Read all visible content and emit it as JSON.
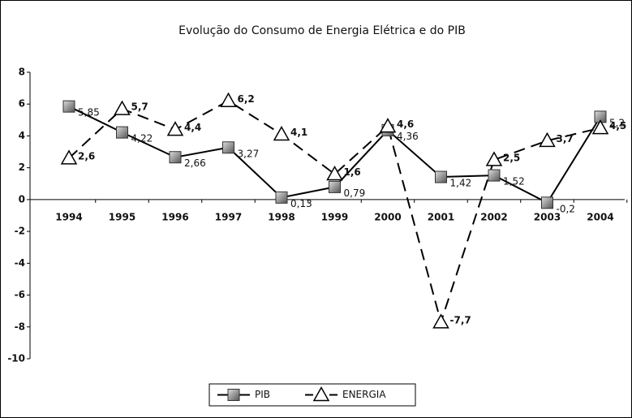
{
  "chart_data": {
    "type": "line",
    "title": "Evolução do Consumo de Energia Elétrica e do PIB",
    "categories": [
      "1994",
      "1995",
      "1996",
      "1997",
      "1998",
      "1999",
      "2000",
      "2001",
      "2002",
      "2003",
      "2004"
    ],
    "series": [
      {
        "name": "PIB",
        "color": "#000000",
        "values": [
          5.85,
          4.22,
          2.66,
          3.27,
          0.13,
          0.79,
          4.36,
          1.42,
          1.52,
          -0.2,
          5.2
        ],
        "value_labels": [
          "5,85",
          "4,22",
          "2,66",
          "3,27",
          "0,13",
          "0,79",
          "4,36",
          "1,42",
          "1,52",
          "-0,2",
          "5,2"
        ]
      },
      {
        "name": "ENERGIA",
        "color": "#000000",
        "values": [
          2.6,
          5.7,
          4.4,
          6.2,
          4.1,
          1.6,
          4.6,
          -7.7,
          2.5,
          3.7,
          4.5
        ],
        "value_labels": [
          "2,6",
          "5,7",
          "4,4",
          "6,2",
          "4,1",
          "1,6",
          "4,6",
          "-7,7",
          "2,5",
          "3,7",
          "4,5"
        ]
      }
    ],
    "ylim": [
      -10,
      8
    ],
    "yticks": [
      -10,
      -8,
      -6,
      -4,
      -2,
      0,
      2,
      4,
      6,
      8
    ],
    "legend": "bottom"
  }
}
